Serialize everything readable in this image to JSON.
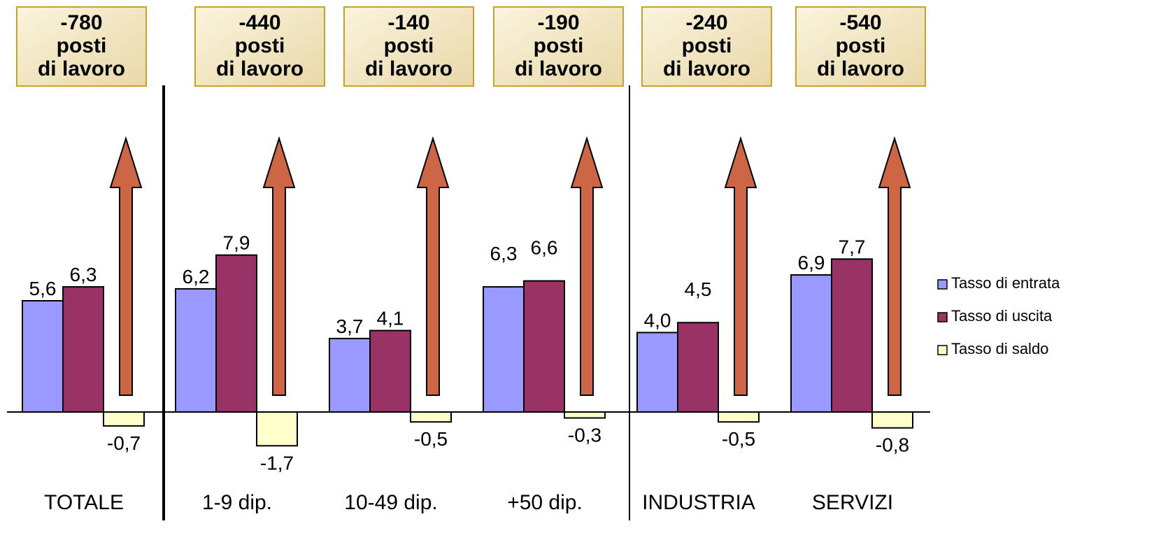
{
  "chart_data": {
    "type": "bar",
    "categories": [
      "TOTALE",
      "1-9 dip.",
      "10-49 dip.",
      "+50 dip.",
      "INDUSTRIA",
      "SERVIZI"
    ],
    "series": [
      {
        "name": "Tasso di entrata",
        "color": "#9999ff",
        "values": [
          5.6,
          6.2,
          3.7,
          6.3,
          4.0,
          6.9
        ],
        "labels": [
          "5,6",
          "6,2",
          "3,7",
          "6,3",
          "4,0",
          "6,9"
        ]
      },
      {
        "name": "Tasso di uscita",
        "color": "#993366",
        "values": [
          6.3,
          7.9,
          4.1,
          6.6,
          4.5,
          7.7
        ],
        "labels": [
          "6,3",
          "7,9",
          "4,1",
          "6,6",
          "4,5",
          "7,7"
        ]
      },
      {
        "name": "Tasso di saldo",
        "color": "#ffffcc",
        "values": [
          -0.7,
          -1.7,
          -0.5,
          -0.3,
          -0.5,
          -0.8
        ],
        "labels": [
          "-0,7",
          "-1,7",
          "-0,5",
          "-0,3",
          "-0,5",
          "-0,8"
        ]
      }
    ],
    "job_boxes": [
      {
        "value": "-780",
        "line2": "posti",
        "line3": "di lavoro"
      },
      {
        "value": "-440",
        "line2": "posti",
        "line3": "di lavoro"
      },
      {
        "value": "-140",
        "line2": "posti",
        "line3": "di lavoro"
      },
      {
        "value": "-190",
        "line2": "posti",
        "line3": "di lavoro"
      },
      {
        "value": "-240",
        "line2": "posti",
        "line3": "di lavoro"
      },
      {
        "value": "-540",
        "line2": "posti",
        "line3": "di lavoro"
      }
    ],
    "arrow_color": "#cc6644",
    "legend_position": "right",
    "grid": false
  }
}
